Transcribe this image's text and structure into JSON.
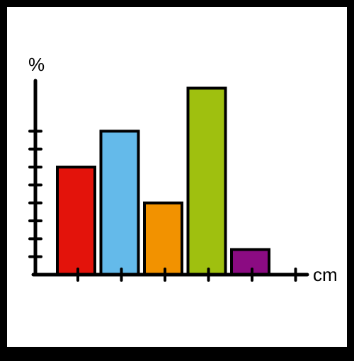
{
  "chart_data": {
    "type": "bar",
    "title": "",
    "xlabel": "cm",
    "ylabel": "%",
    "categories": [
      "",
      "",
      "",
      "",
      ""
    ],
    "values": [
      6,
      8,
      4,
      10.4,
      1.4
    ],
    "ylim": [
      0,
      12
    ],
    "colors": [
      "#e3130b",
      "#64baea",
      "#f29200",
      "#9fc00f",
      "#8b0b82"
    ],
    "bar_outline": "#000000",
    "grid": false,
    "legend": "none"
  }
}
